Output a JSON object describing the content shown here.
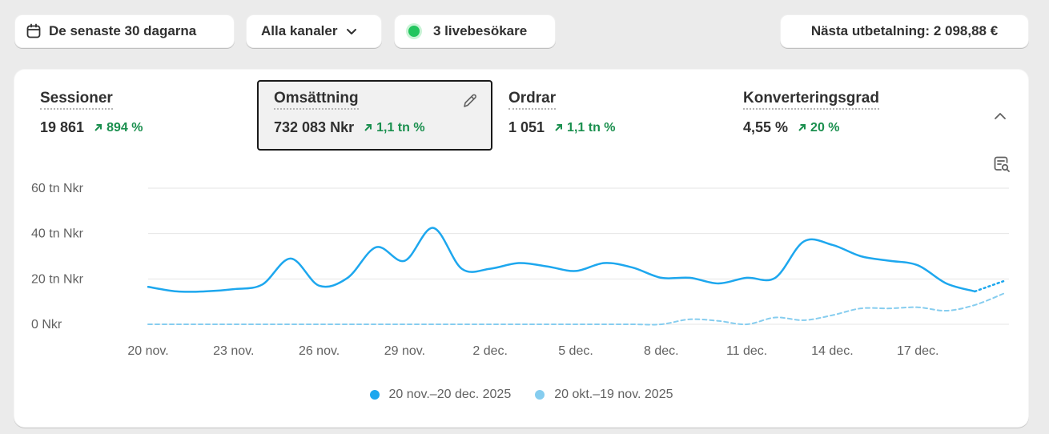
{
  "filters": {
    "date_range": "De senaste 30 dagarna",
    "channels": "Alla kanaler",
    "live_visitors": "3 livebesökare",
    "payout": "Nästa utbetalning: 2 098,88 €"
  },
  "metrics": [
    {
      "label": "Sessioner",
      "value": "19 861",
      "change": "894 %"
    },
    {
      "label": "Omsättning",
      "value": "732 083 Nkr",
      "change": "1,1 tn %"
    },
    {
      "label": "Ordrar",
      "value": "1 051",
      "change": "1,1 tn %"
    },
    {
      "label": "Konverteringsgrad",
      "value": "4,55 %",
      "change": "20 %"
    }
  ],
  "colors": {
    "current": "#1da7ee",
    "previous": "#86cdef",
    "positive": "#1a8f4e"
  },
  "chart_data": {
    "type": "line",
    "y_ticks": [
      "60 tn Nkr",
      "40 tn Nkr",
      "20 tn Nkr",
      "0 Nkr"
    ],
    "y_tick_values": [
      60000,
      40000,
      20000,
      0
    ],
    "ylim": [
      0,
      60000
    ],
    "x_tick_labels": [
      "20 nov.",
      "23 nov.",
      "26 nov.",
      "29 nov.",
      "2 dec.",
      "5 dec.",
      "8 dec.",
      "11 dec.",
      "14 dec.",
      "17 dec."
    ],
    "x_tick_indices": [
      0,
      3,
      6,
      9,
      12,
      15,
      18,
      21,
      24,
      27
    ],
    "grid": true,
    "series": [
      {
        "name": "20 nov.–20 dec. 2025",
        "style": "solid",
        "values": [
          16500,
          14500,
          14500,
          15500,
          17500,
          29000,
          17000,
          20500,
          34000,
          28000,
          42500,
          24500,
          24500,
          27000,
          25500,
          23500,
          27000,
          25000,
          20500,
          20500,
          18000,
          20500,
          20500,
          36500,
          35000,
          30000,
          28000,
          26000,
          18000,
          14500
        ]
      },
      {
        "name": "20 nov.–20 dec. 2025",
        "style": "dotted",
        "start_index": 29,
        "values": [
          14500,
          19000
        ]
      },
      {
        "name": "20 okt.–19 nov. 2025",
        "style": "dashed",
        "values": [
          0,
          0,
          0,
          0,
          0,
          0,
          0,
          0,
          0,
          0,
          0,
          0,
          0,
          0,
          0,
          0,
          0,
          0,
          0,
          2200,
          1500,
          0,
          3000,
          1800,
          4000,
          7000,
          7000,
          7500,
          6000,
          8500,
          13500
        ]
      }
    ],
    "legend": [
      {
        "label": "20 nov.–20 dec. 2025",
        "color": "#1da7ee"
      },
      {
        "label": "20 okt.–19 nov. 2025",
        "color": "#86cdef"
      }
    ]
  }
}
